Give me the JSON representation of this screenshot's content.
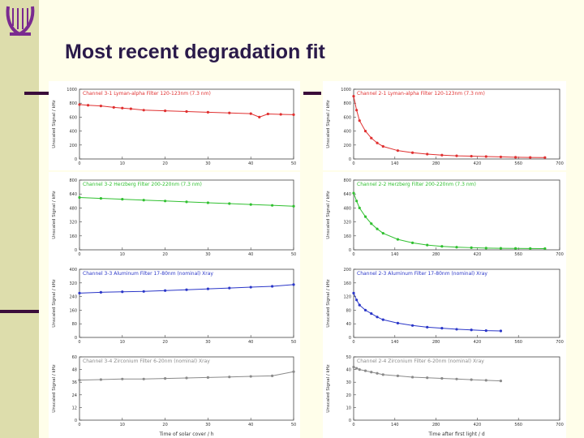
{
  "slide": {
    "title": "Most recent degradation fit"
  },
  "colors": {
    "background": "#fffeea",
    "sidebar": "#ddddac",
    "accent_dark": "#3a0c3a",
    "logo": "#7a2a90",
    "channel1": "#e03030",
    "channel2": "#30c030",
    "channel3": "#2a36c8",
    "channel4": "#8a8a8a"
  },
  "icons": {
    "logo": "harp-logo-icon"
  },
  "chart_data": [
    {
      "type": "scatter",
      "title": "Channel 3-1 Lyman-alpha Filter 120-123nm (7.3 nm)",
      "xlabel": "",
      "ylabel": "Unscaled Signal / kHz",
      "xlim": [
        0,
        50
      ],
      "ylim": [
        0,
        1000
      ],
      "series": [
        {
          "name": "",
          "x": [
            0,
            2,
            5,
            8,
            10,
            12,
            15,
            20,
            25,
            30,
            35,
            40,
            42,
            44,
            47,
            50
          ],
          "y": [
            780,
            770,
            760,
            740,
            730,
            720,
            700,
            690,
            680,
            670,
            660,
            650,
            600,
            645,
            640,
            635
          ]
        }
      ]
    },
    {
      "type": "scatter",
      "title": "Channel 2-1 Lyman-alpha Filter 120-123nm (7.3 nm)",
      "xlabel": "",
      "ylabel": "Unscaled Signal / kHz",
      "xlim": [
        0,
        700
      ],
      "ylim": [
        0,
        1000
      ],
      "series": [
        {
          "name": "",
          "x": [
            0,
            10,
            20,
            40,
            60,
            80,
            100,
            150,
            200,
            250,
            300,
            350,
            400,
            450,
            500,
            550,
            600,
            650
          ],
          "y": [
            900,
            700,
            550,
            400,
            300,
            230,
            180,
            120,
            90,
            70,
            55,
            45,
            40,
            35,
            30,
            25,
            22,
            20
          ]
        }
      ]
    },
    {
      "type": "scatter",
      "title": "Channel 3-2 Herzberg Filter 200-220nm (7.3 nm)",
      "xlabel": "",
      "ylabel": "Unscaled Signal / kHz",
      "xlim": [
        0,
        50
      ],
      "ylim": [
        0,
        800
      ],
      "series": [
        {
          "name": "",
          "x": [
            0,
            5,
            10,
            15,
            20,
            25,
            30,
            35,
            40,
            45,
            50
          ],
          "y": [
            600,
            590,
            580,
            570,
            560,
            550,
            540,
            530,
            520,
            510,
            500
          ]
        }
      ]
    },
    {
      "type": "scatter",
      "title": "Channel 2-2 Herzberg Filter 200-220nm (7.3 nm)",
      "xlabel": "",
      "ylabel": "Unscaled Signal / kHz",
      "xlim": [
        0,
        700
      ],
      "ylim": [
        0,
        800
      ],
      "series": [
        {
          "name": "",
          "x": [
            0,
            10,
            20,
            40,
            60,
            80,
            100,
            150,
            200,
            250,
            300,
            350,
            400,
            450,
            500,
            550,
            600,
            650
          ],
          "y": [
            650,
            560,
            480,
            380,
            300,
            240,
            190,
            120,
            80,
            55,
            40,
            30,
            25,
            20,
            18,
            16,
            15,
            14
          ]
        }
      ]
    },
    {
      "type": "scatter",
      "title": "Channel 3-3 Aluminum Filter 17-80nm (nominal) Xray",
      "xlabel": "",
      "ylabel": "Unscaled Signal / kHz",
      "xlim": [
        0,
        50
      ],
      "ylim": [
        0,
        400
      ],
      "series": [
        {
          "name": "",
          "x": [
            0,
            5,
            10,
            15,
            20,
            25,
            30,
            35,
            40,
            45,
            50
          ],
          "y": [
            260,
            265,
            268,
            270,
            275,
            280,
            285,
            290,
            295,
            300,
            310
          ]
        }
      ]
    },
    {
      "type": "scatter",
      "title": "Channel 2-3 Aluminum Filter 17-80nm (nominal) Xray",
      "xlabel": "",
      "ylabel": "Unscaled Signal / kHz",
      "xlim": [
        0,
        700
      ],
      "ylim": [
        0,
        200
      ],
      "series": [
        {
          "name": "",
          "x": [
            0,
            10,
            20,
            40,
            60,
            80,
            100,
            150,
            200,
            250,
            300,
            350,
            400,
            450,
            500
          ],
          "y": [
            130,
            110,
            95,
            80,
            70,
            60,
            52,
            42,
            35,
            30,
            27,
            24,
            22,
            20,
            19
          ]
        }
      ]
    },
    {
      "type": "scatter",
      "title": "Channel 3-4 Zirconium Filter 6-20nm (nominal) Xray",
      "xlabel": "Time of solar cover / h",
      "ylabel": "Unscaled Signal / kHz",
      "xlim": [
        0,
        50
      ],
      "ylim": [
        0,
        60
      ],
      "series": [
        {
          "name": "",
          "x": [
            0,
            5,
            10,
            15,
            20,
            25,
            30,
            35,
            40,
            45,
            50
          ],
          "y": [
            38,
            38.5,
            39,
            39,
            39.5,
            40,
            40.5,
            41,
            41.5,
            42,
            46
          ]
        }
      ]
    },
    {
      "type": "scatter",
      "title": "Channel 2-4 Zirconium Filter 6-20nm (nominal) Xray",
      "xlabel": "Time after first light / d",
      "ylabel": "Unscaled Signal / kHz",
      "xlim": [
        0,
        700
      ],
      "ylim": [
        0,
        50
      ],
      "series": [
        {
          "name": "",
          "x": [
            0,
            10,
            20,
            40,
            60,
            80,
            100,
            150,
            200,
            250,
            300,
            350,
            400,
            450,
            500
          ],
          "y": [
            42,
            41,
            40,
            39,
            38,
            37,
            36,
            35,
            34,
            33.5,
            33,
            32.5,
            32,
            31.5,
            31
          ]
        }
      ]
    }
  ]
}
